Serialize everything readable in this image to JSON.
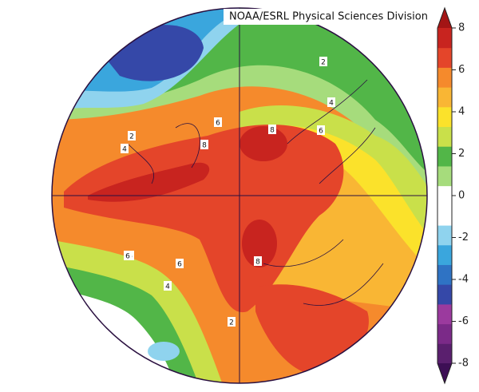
{
  "credit": "NOAA/ESRL Physical Sciences Division",
  "colorbar": {
    "lim": [
      -8,
      8
    ],
    "ticks": [
      -8,
      -6,
      -4,
      -2,
      0,
      2,
      4,
      6,
      8
    ],
    "colors": [
      "#5a1f6e",
      "#7b2a88",
      "#9b3a9e",
      "#3548a8",
      "#2f73c4",
      "#3aa6dd",
      "#8fd3ee",
      "#ffffff",
      "#ffffff",
      "#a6dc7c",
      "#52b648",
      "#c9e04a",
      "#fbe22b",
      "#f9b634",
      "#f58a2c",
      "#e4452a",
      "#c8241f"
    ],
    "extend_colors": [
      "#3d0f55",
      "#a31515"
    ]
  },
  "contour_labels": [
    2,
    4,
    6,
    8,
    8,
    6,
    4,
    2,
    6,
    8,
    6,
    4,
    2,
    6
  ]
}
